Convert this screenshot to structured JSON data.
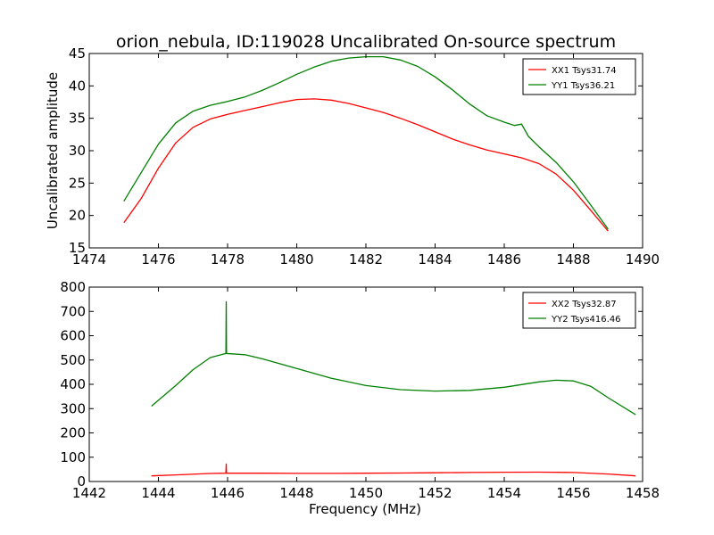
{
  "figure": {
    "title": "orion_nebula, ID:119028 Uncalibrated On-source spectrum",
    "xlabel": "Frequency (MHz)",
    "colors": {
      "red": "#ff0000",
      "green": "#008000"
    }
  },
  "chart_data": [
    {
      "type": "line",
      "ylabel": "Uncalibrated amplitude",
      "xlabel": "",
      "xlim": [
        1474,
        1490
      ],
      "ylim": [
        15,
        45
      ],
      "xticks": [
        1474,
        1476,
        1478,
        1480,
        1482,
        1484,
        1486,
        1488,
        1490
      ],
      "yticks": [
        15,
        20,
        25,
        30,
        35,
        40,
        45
      ],
      "legend_placement": "top-right",
      "grid": false,
      "series": [
        {
          "name": "XX1 Tsys31.74",
          "color": "#ff0000",
          "x": [
            1475,
            1475.5,
            1476,
            1476.5,
            1477,
            1477.5,
            1478,
            1478.5,
            1479,
            1479.5,
            1480,
            1480.5,
            1481,
            1481.5,
            1482,
            1482.5,
            1483,
            1483.5,
            1484,
            1484.5,
            1485,
            1485.5,
            1486,
            1486.5,
            1487,
            1487.5,
            1488,
            1488.5,
            1489
          ],
          "y": [
            18.9,
            22.6,
            27.3,
            31.2,
            33.6,
            34.9,
            35.6,
            36.2,
            36.8,
            37.4,
            37.9,
            38.0,
            37.8,
            37.3,
            36.6,
            35.9,
            35.0,
            34.0,
            32.9,
            31.8,
            30.9,
            30.1,
            29.5,
            28.9,
            28.0,
            26.4,
            23.9,
            20.8,
            17.6
          ]
        },
        {
          "name": "YY1 Tsys36.21",
          "color": "#008000",
          "x": [
            1475,
            1475.5,
            1476,
            1476.5,
            1477,
            1477.5,
            1478,
            1478.5,
            1479,
            1479.5,
            1480,
            1480.5,
            1481,
            1481.5,
            1482,
            1482.5,
            1483,
            1483.5,
            1484,
            1484.5,
            1485,
            1485.5,
            1486,
            1486.3,
            1486.5,
            1486.7,
            1487,
            1487.5,
            1488,
            1488.5,
            1489
          ],
          "y": [
            22.2,
            26.6,
            31.0,
            34.3,
            36.1,
            37.0,
            37.6,
            38.3,
            39.3,
            40.5,
            41.8,
            42.9,
            43.8,
            44.3,
            44.5,
            44.5,
            44.0,
            43.0,
            41.4,
            39.4,
            37.2,
            35.4,
            34.4,
            33.9,
            34.1,
            32.2,
            30.6,
            28.2,
            25.2,
            21.6,
            17.9
          ]
        }
      ]
    },
    {
      "type": "line",
      "ylabel": "",
      "xlabel": "Frequency (MHz)",
      "xlim": [
        1442,
        1458
      ],
      "ylim": [
        0,
        800
      ],
      "xticks": [
        1442,
        1444,
        1446,
        1448,
        1450,
        1452,
        1454,
        1456,
        1458
      ],
      "yticks": [
        0,
        100,
        200,
        300,
        400,
        500,
        600,
        700,
        800
      ],
      "legend_placement": "top-right",
      "grid": false,
      "series": [
        {
          "name": "XX2 Tsys32.87",
          "color": "#ff0000",
          "x": [
            1443.8,
            1444.5,
            1445.5,
            1445.95,
            1445.96,
            1445.97,
            1446.5,
            1447,
            1448,
            1449,
            1450,
            1451,
            1452,
            1453,
            1454,
            1455,
            1456,
            1457,
            1457.8
          ],
          "y": [
            23,
            27,
            33,
            34,
            72,
            34,
            34,
            34,
            33.5,
            33.5,
            34,
            35,
            36,
            37,
            38,
            38.5,
            37,
            31,
            23
          ]
        },
        {
          "name": "YY2 Tsys416.46",
          "color": "#008000",
          "x": [
            1443.8,
            1444.5,
            1445,
            1445.5,
            1445.95,
            1445.96,
            1445.97,
            1446.5,
            1447,
            1448,
            1449,
            1450,
            1451,
            1452,
            1453,
            1454,
            1455,
            1455.5,
            1456,
            1456.5,
            1457,
            1457.8
          ],
          "y": [
            310,
            395,
            460,
            510,
            527,
            740,
            527,
            522,
            505,
            465,
            425,
            395,
            378,
            372,
            375,
            388,
            410,
            417,
            414,
            392,
            345,
            275
          ]
        }
      ]
    }
  ]
}
